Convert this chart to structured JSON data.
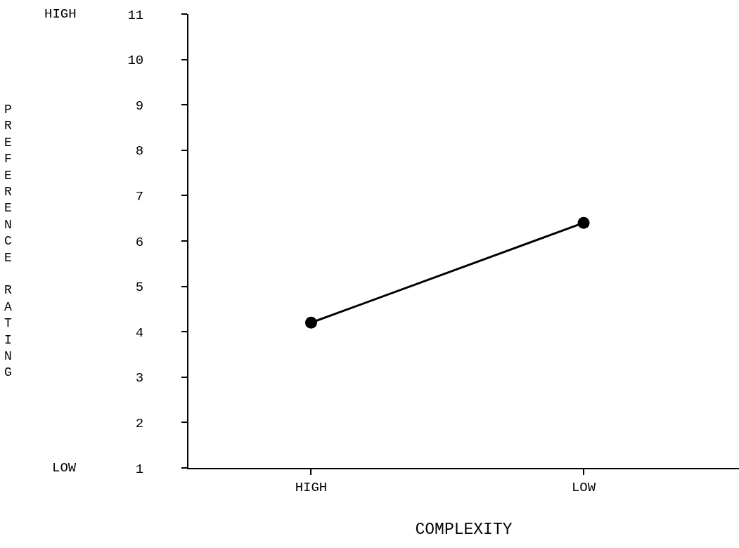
{
  "chart_data": {
    "type": "line",
    "xlabel": "COMPLEXITY",
    "ylabel": "PREFERENCE RATING",
    "categories": [
      "HIGH",
      "LOW"
    ],
    "series": [
      {
        "color": "#000000",
        "values": [
          4.2,
          6.4
        ]
      }
    ],
    "ylim": [
      1,
      11
    ],
    "yticks": [
      1,
      2,
      3,
      4,
      5,
      6,
      7,
      8,
      9,
      10,
      11
    ],
    "marker": "circle",
    "line_style": "solid",
    "legend": false,
    "annotations": [
      "HIGH",
      "LOW"
    ]
  }
}
